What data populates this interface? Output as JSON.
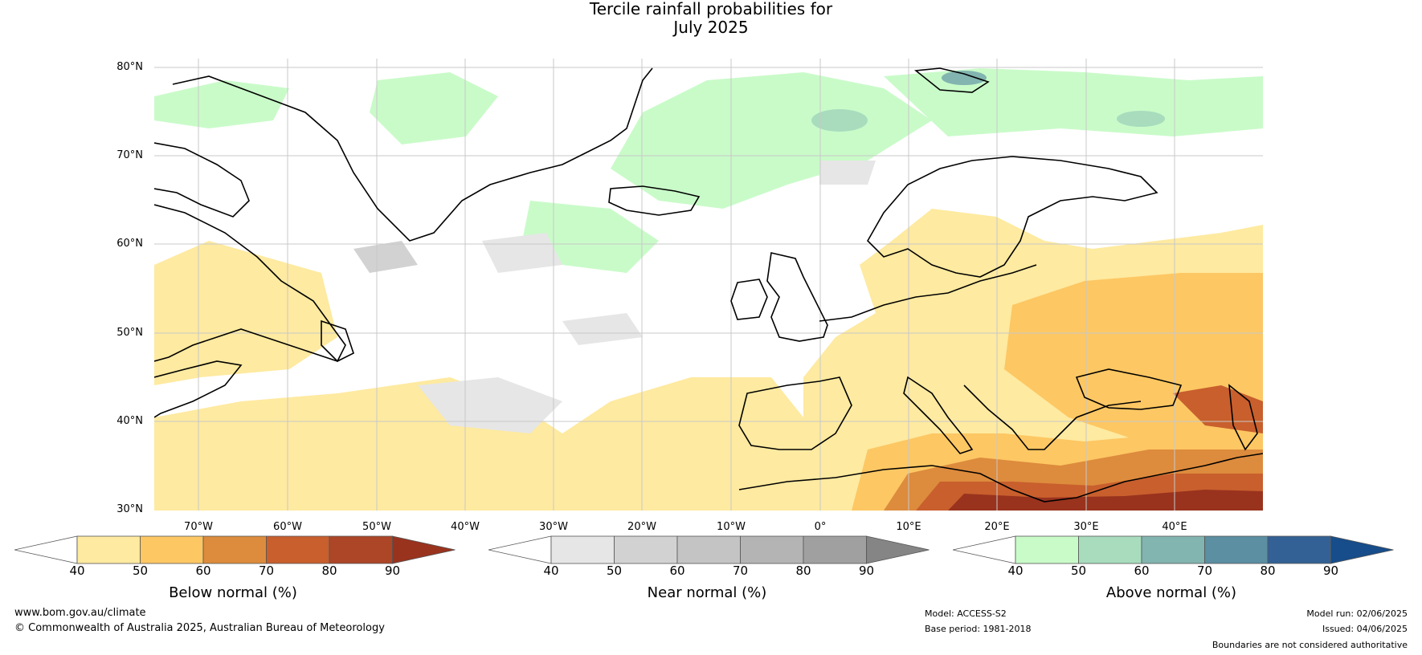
{
  "title_line1": "Tercile rainfall probabilities for",
  "title_line2": "July 2025",
  "lat_labels": [
    "80°N",
    "70°N",
    "60°N",
    "50°N",
    "40°N",
    "30°N"
  ],
  "lon_labels": [
    "70°W",
    "60°W",
    "50°W",
    "40°W",
    "30°W",
    "20°W",
    "10°W",
    "0°",
    "10°E",
    "20°E",
    "30°E",
    "40°E"
  ],
  "colorbars": [
    {
      "label": "Below normal (%)",
      "ticks": [
        "40",
        "50",
        "60",
        "70",
        "80",
        "90"
      ],
      "colors": [
        "#ffffff",
        "#feeaa0",
        "#fdc763",
        "#dd8b3d",
        "#c85f2d",
        "#ad4527",
        "#99331e"
      ]
    },
    {
      "label": "Near normal (%)",
      "ticks": [
        "40",
        "50",
        "60",
        "70",
        "80",
        "90"
      ],
      "colors": [
        "#ffffff",
        "#e6e6e6",
        "#d2d2d2",
        "#c4c4c4",
        "#b4b4b4",
        "#a0a0a0",
        "#858585"
      ]
    },
    {
      "label": "Above normal (%)",
      "ticks": [
        "40",
        "50",
        "60",
        "70",
        "80",
        "90"
      ],
      "colors": [
        "#ffffff",
        "#c9fbc9",
        "#a8dcbd",
        "#82b4b0",
        "#5b8fa1",
        "#336195",
        "#164d8a"
      ]
    }
  ],
  "footer": {
    "website": "www.bom.gov.au/climate",
    "copyright": "© Commonwealth of Australia 2025, Australian Bureau of Meteorology",
    "model": "Model: ACCESS-S2",
    "base_period": "Base period: 1981-2018",
    "model_run": "Model run: 02/06/2025",
    "issued": "Issued: 04/06/2025",
    "disclaimer": "Boundaries are not considered authoritative"
  }
}
